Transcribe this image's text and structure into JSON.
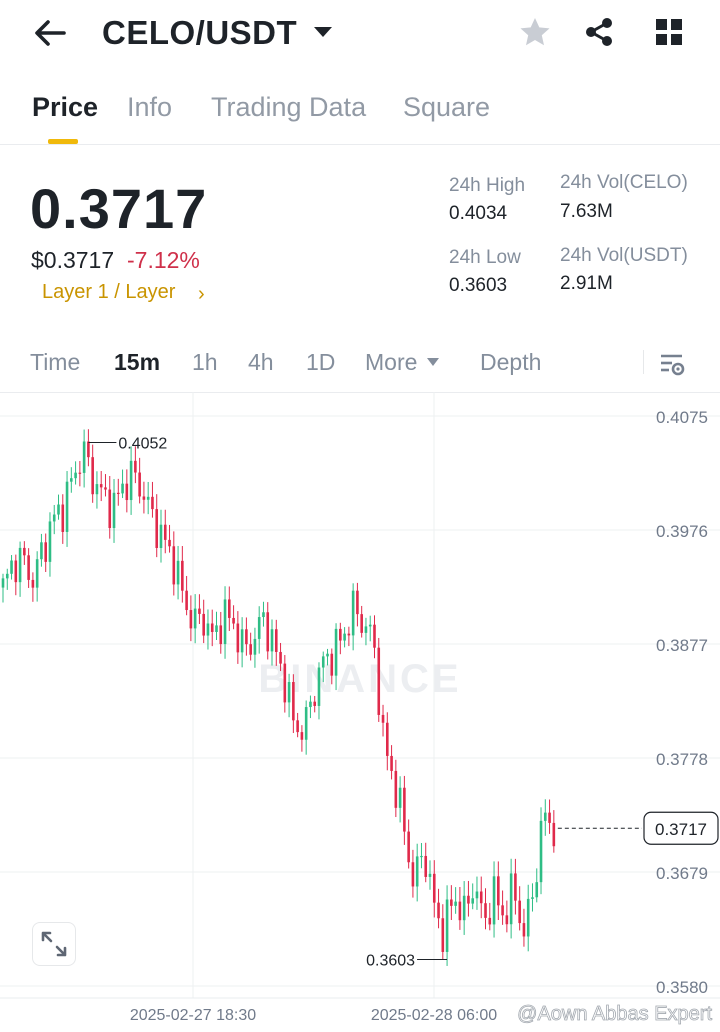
{
  "header": {
    "pair": "CELO/USDT",
    "icons": [
      "arrow-left-icon",
      "caret-down-icon",
      "star-icon",
      "share-icon",
      "grid-icon"
    ]
  },
  "tabs": [
    {
      "label": "Price",
      "active": true
    },
    {
      "label": "Info",
      "active": false
    },
    {
      "label": "Trading Data",
      "active": false
    },
    {
      "label": "Square",
      "active": false
    }
  ],
  "ticker": {
    "last_price": "0.3717",
    "usd_price": "$0.3717",
    "change_pct": "-7.12%",
    "tag": "Layer 1 / Layer",
    "tag_chevron": "›",
    "high_label": "24h High",
    "high_value": "0.4034",
    "low_label": "24h Low",
    "low_value": "0.3603",
    "vol_base_label": "24h Vol(CELO)",
    "vol_base_value": "7.63M",
    "vol_quote_label": "24h Vol(USDT)",
    "vol_quote_value": "2.91M"
  },
  "intervals": {
    "items": [
      {
        "label": "Time",
        "active": false
      },
      {
        "label": "15m",
        "active": true
      },
      {
        "label": "1h",
        "active": false
      },
      {
        "label": "4h",
        "active": false
      },
      {
        "label": "1D",
        "active": false
      },
      {
        "label": "More",
        "active": false
      },
      {
        "label": "Depth",
        "active": false
      }
    ]
  },
  "colors": {
    "up": "#2ebd85",
    "down": "#e0294a",
    "accent": "#f0b90b",
    "negative_text": "#cf304a"
  },
  "chart_data": {
    "type": "candlestick",
    "y_ticks": [
      "0.4075",
      "0.3976",
      "0.3877",
      "0.3778",
      "0.3679",
      "0.3580"
    ],
    "ylim": [
      0.358,
      0.4075
    ],
    "x_ticks": [
      "2025-02-27 18:30",
      "2025-02-28 06:00"
    ],
    "high_marker": "0.4052",
    "low_marker": "0.3603",
    "last_price_tag": "0.3717",
    "watermark": "BINANCE",
    "attribution": "@Aown Abbas Expert",
    "path": [
      0.3925,
      0.3948,
      0.395,
      0.3932,
      0.396,
      0.3985,
      0.3995,
      0.4022,
      0.4045,
      0.402,
      0.4005,
      0.3995,
      0.4015,
      0.4025,
      0.4008,
      0.3985,
      0.3968,
      0.395,
      0.3918,
      0.3895,
      0.39,
      0.388,
      0.3903,
      0.3895,
      0.3872,
      0.388,
      0.39,
      0.3875,
      0.385,
      0.381,
      0.38,
      0.3835,
      0.3862,
      0.387,
      0.3885,
      0.3908,
      0.3895,
      0.388,
      0.379,
      0.376,
      0.372,
      0.3668,
      0.37,
      0.365,
      0.3625,
      0.366,
      0.364,
      0.367,
      0.3635,
      0.366,
      0.364,
      0.3665,
      0.3625,
      0.3665,
      0.373,
      0.3717
    ]
  }
}
